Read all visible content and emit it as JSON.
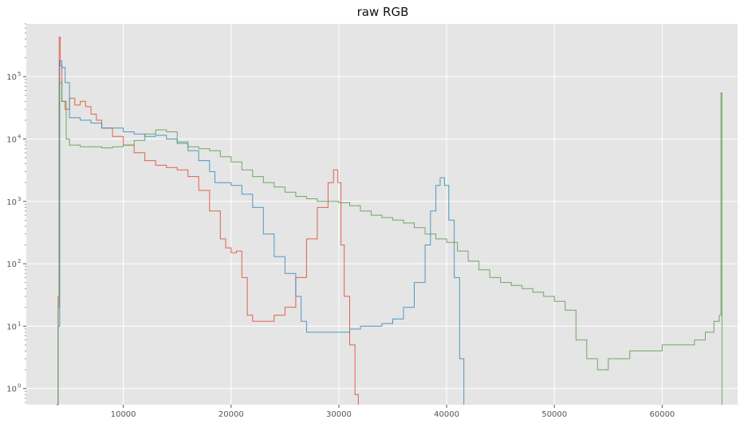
{
  "chart_data": {
    "type": "line",
    "title": "raw RGB",
    "xlabel": "",
    "ylabel": "",
    "yscale": "log",
    "xlim": [
      1000,
      67000
    ],
    "ylim": [
      0.55,
      700000
    ],
    "x_ticks": [
      {
        "value": 10000,
        "label": "10000"
      },
      {
        "value": 20000,
        "label": "20000"
      },
      {
        "value": 30000,
        "label": "30000"
      },
      {
        "value": 40000,
        "label": "40000"
      },
      {
        "value": 50000,
        "label": "50000"
      },
      {
        "value": 60000,
        "label": "60000"
      }
    ],
    "y_ticks": [
      {
        "value": 1,
        "label": "10",
        "exp": "0"
      },
      {
        "value": 10,
        "label": "10",
        "exp": "1"
      },
      {
        "value": 100,
        "label": "10",
        "exp": "2"
      },
      {
        "value": 1000,
        "label": "10",
        "exp": "3"
      },
      {
        "value": 10000,
        "label": "10",
        "exp": "4"
      },
      {
        "value": 100000,
        "label": "10",
        "exp": "5"
      }
    ],
    "grid": true,
    "background": "#e5e5e5",
    "series": [
      {
        "color": "#e24a33",
        "style": "step",
        "points": [
          [
            3800,
            0.5
          ],
          [
            3950,
            30
          ],
          [
            4050,
            430000
          ],
          [
            4150,
            150000
          ],
          [
            4300,
            40000
          ],
          [
            4600,
            30000
          ],
          [
            5000,
            45000
          ],
          [
            5500,
            35000
          ],
          [
            6000,
            40000
          ],
          [
            6500,
            33000
          ],
          [
            7000,
            25000
          ],
          [
            7500,
            20000
          ],
          [
            8000,
            15000
          ],
          [
            9000,
            11000
          ],
          [
            10000,
            8000
          ],
          [
            11000,
            6000
          ],
          [
            12000,
            4500
          ],
          [
            13000,
            3800
          ],
          [
            14000,
            3500
          ],
          [
            15000,
            3200
          ],
          [
            16000,
            2500
          ],
          [
            17000,
            1500
          ],
          [
            18000,
            700
          ],
          [
            19000,
            250
          ],
          [
            19500,
            180
          ],
          [
            20000,
            150
          ],
          [
            20500,
            160
          ],
          [
            21000,
            60
          ],
          [
            21500,
            15
          ],
          [
            22000,
            12
          ],
          [
            23000,
            12
          ],
          [
            24000,
            15
          ],
          [
            25000,
            20
          ],
          [
            26000,
            60
          ],
          [
            27000,
            250
          ],
          [
            28000,
            800
          ],
          [
            29000,
            2000
          ],
          [
            29500,
            3200
          ],
          [
            29900,
            2000
          ],
          [
            30200,
            200
          ],
          [
            30500,
            30
          ],
          [
            31000,
            5
          ],
          [
            31500,
            0.8
          ],
          [
            31800,
            0.5
          ]
        ]
      },
      {
        "color": "#348abd",
        "style": "step",
        "points": [
          [
            3800,
            0.5
          ],
          [
            3950,
            10
          ],
          [
            4100,
            180000
          ],
          [
            4300,
            140000
          ],
          [
            4600,
            80000
          ],
          [
            5000,
            22000
          ],
          [
            6000,
            20000
          ],
          [
            7000,
            18000
          ],
          [
            8000,
            15000
          ],
          [
            9000,
            15000
          ],
          [
            10000,
            13000
          ],
          [
            11000,
            12000
          ],
          [
            12000,
            11000
          ],
          [
            13000,
            11500
          ],
          [
            14000,
            10000
          ],
          [
            15000,
            8500
          ],
          [
            16000,
            6500
          ],
          [
            17000,
            4500
          ],
          [
            18000,
            3000
          ],
          [
            18500,
            2000
          ],
          [
            19000,
            2000
          ],
          [
            20000,
            1800
          ],
          [
            21000,
            1300
          ],
          [
            22000,
            800
          ],
          [
            23000,
            300
          ],
          [
            24000,
            130
          ],
          [
            25000,
            70
          ],
          [
            26000,
            30
          ],
          [
            26500,
            12
          ],
          [
            27000,
            8
          ],
          [
            28000,
            8
          ],
          [
            29000,
            8
          ],
          [
            30000,
            8
          ],
          [
            31000,
            9
          ],
          [
            32000,
            10
          ],
          [
            33000,
            10
          ],
          [
            34000,
            11
          ],
          [
            35000,
            13
          ],
          [
            36000,
            20
          ],
          [
            37000,
            50
          ],
          [
            38000,
            200
          ],
          [
            38500,
            700
          ],
          [
            39000,
            1800
          ],
          [
            39400,
            2400
          ],
          [
            39800,
            1800
          ],
          [
            40200,
            500
          ],
          [
            40700,
            60
          ],
          [
            41200,
            3
          ],
          [
            41600,
            0.5
          ]
        ]
      },
      {
        "color": "#988ed5",
        "style": "none",
        "points": []
      },
      {
        "color": "#5a9e4b",
        "style": "step",
        "points": [
          [
            3800,
            0.5
          ],
          [
            3950,
            20
          ],
          [
            4050,
            80000
          ],
          [
            4300,
            40000
          ],
          [
            4700,
            10000
          ],
          [
            5000,
            8000
          ],
          [
            6000,
            7500
          ],
          [
            7000,
            7500
          ],
          [
            8000,
            7200
          ],
          [
            9000,
            7500
          ],
          [
            10000,
            8000
          ],
          [
            11000,
            9500
          ],
          [
            12000,
            12000
          ],
          [
            13000,
            14000
          ],
          [
            14000,
            13000
          ],
          [
            15000,
            9000
          ],
          [
            16000,
            7500
          ],
          [
            17000,
            7000
          ],
          [
            18000,
            6500
          ],
          [
            19000,
            5200
          ],
          [
            20000,
            4300
          ],
          [
            21000,
            3200
          ],
          [
            22000,
            2500
          ],
          [
            23000,
            2000
          ],
          [
            24000,
            1700
          ],
          [
            25000,
            1400
          ],
          [
            26000,
            1200
          ],
          [
            27000,
            1100
          ],
          [
            28000,
            1000
          ],
          [
            29000,
            1000
          ],
          [
            30000,
            950
          ],
          [
            31000,
            850
          ],
          [
            32000,
            700
          ],
          [
            33000,
            600
          ],
          [
            34000,
            550
          ],
          [
            35000,
            500
          ],
          [
            36000,
            450
          ],
          [
            37000,
            380
          ],
          [
            38000,
            300
          ],
          [
            39000,
            250
          ],
          [
            40000,
            220
          ],
          [
            41000,
            160
          ],
          [
            42000,
            110
          ],
          [
            43000,
            80
          ],
          [
            44000,
            60
          ],
          [
            45000,
            50
          ],
          [
            46000,
            45
          ],
          [
            47000,
            40
          ],
          [
            48000,
            35
          ],
          [
            49000,
            30
          ],
          [
            50000,
            25
          ],
          [
            51000,
            18
          ],
          [
            52000,
            6
          ],
          [
            53000,
            3
          ],
          [
            54000,
            2
          ],
          [
            55000,
            3
          ],
          [
            56000,
            3
          ],
          [
            57000,
            4
          ],
          [
            58000,
            4
          ],
          [
            59000,
            4
          ],
          [
            60000,
            5
          ],
          [
            61000,
            5
          ],
          [
            62000,
            5
          ],
          [
            63000,
            6
          ],
          [
            64000,
            8
          ],
          [
            64800,
            12
          ],
          [
            65300,
            15
          ],
          [
            65450,
            55000
          ],
          [
            65550,
            0.5
          ]
        ]
      }
    ]
  }
}
